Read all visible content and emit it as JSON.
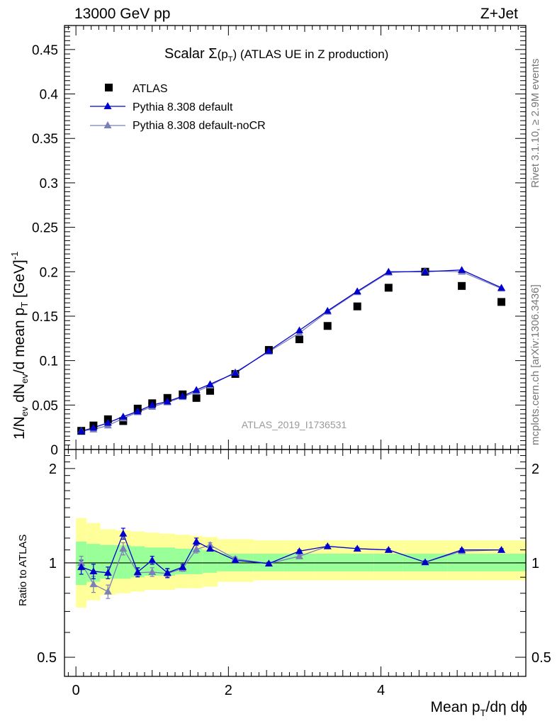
{
  "header": {
    "left": "13000 GeV pp",
    "right": "Z+Jet"
  },
  "plot_title": {
    "prefix": "Scalar ",
    "sigma": "Σ",
    "open": "(p",
    "sub": "T",
    "close": ")",
    "rest": " (ATLAS UE in Z production)"
  },
  "side_text": {
    "upper": "Rivet 3.1.10, ≥ 2.9M events",
    "lower": "mcplots.cern.ch [arXiv:1306.3436]"
  },
  "watermark": "ATLAS_2019_I1736531",
  "ylabel_main": {
    "p1": "1/N",
    "s1": "ev",
    "p2": " dN",
    "s2": "ev",
    "p3": "/d mean p",
    "s3": "T",
    "p4": " [GeV]",
    "sup": "-1"
  },
  "ylabel_ratio": "Ratio to ATLAS",
  "xlabel": {
    "p1": "Mean p",
    "s1": "T",
    "p2": "/dη dϕ"
  },
  "legend": [
    {
      "label": "ATLAS",
      "marker": "square",
      "color": "#000000"
    },
    {
      "label": "Pythia 8.308 default",
      "marker": "triangle",
      "color": "#0000cc"
    },
    {
      "label": "Pythia 8.308 default-noCR",
      "marker": "triangle",
      "color": "#7b7fba"
    }
  ],
  "chart_data": {
    "type": "scatter",
    "xlim": [
      -0.15,
      5.9
    ],
    "main": {
      "ylim": [
        0,
        0.477
      ],
      "yticks": [
        0,
        0.05,
        0.1,
        0.15,
        0.2,
        0.25,
        0.3,
        0.35,
        0.4,
        0.45
      ],
      "yticklabels": [
        "0",
        "0.05",
        "0.1",
        "0.15",
        "0.2",
        "0.25",
        "0.3",
        "0.35",
        "0.4",
        "0.45"
      ]
    },
    "ratio": {
      "ylim": [
        0.4345,
        2.3
      ],
      "log": true,
      "yticks": [
        0.5,
        1,
        2
      ],
      "yticklabels": [
        "0.5",
        "1",
        "2"
      ]
    },
    "xticks": [
      0,
      2,
      4
    ],
    "xticklabels": [
      "0",
      "2",
      "4"
    ],
    "x": [
      0.07,
      0.23,
      0.42,
      0.62,
      0.81,
      1.0,
      1.2,
      1.4,
      1.58,
      1.76,
      2.09,
      2.53,
      2.93,
      3.3,
      3.69,
      4.1,
      4.58,
      5.06,
      5.58
    ],
    "xerr": [
      0.07,
      0.09,
      0.1,
      0.1,
      0.09,
      0.1,
      0.1,
      0.1,
      0.08,
      0.1,
      0.24,
      0.2,
      0.2,
      0.17,
      0.22,
      0.19,
      0.29,
      0.19,
      0.33
    ],
    "atlas": [
      0.021,
      0.027,
      0.034,
      0.032,
      0.046,
      0.052,
      0.058,
      0.062,
      0.058,
      0.066,
      0.085,
      0.112,
      0.124,
      0.139,
      0.161,
      0.182,
      0.2,
      0.184,
      0.166
    ],
    "series": [
      {
        "name": "Pythia 8.308 default",
        "color": "#0000cc",
        "values": [
          0.0205,
          0.0245,
          0.03,
          0.037,
          0.043,
          0.05,
          0.054,
          0.06,
          0.067,
          0.0735,
          0.086,
          0.111,
          0.134,
          0.156,
          0.178,
          0.2,
          0.2,
          0.202,
          0.182
        ],
        "ratio": [
          0.97,
          0.94,
          0.93,
          1.24,
          0.935,
          1.02,
          0.93,
          0.97,
          1.17,
          1.11,
          1.02,
          0.995,
          1.09,
          1.13,
          1.11,
          1.1,
          1.005,
          1.1,
          1.1
        ]
      },
      {
        "name": "Pythia 8.308 default-noCR",
        "color": "#7b7fba",
        "values": [
          0.021,
          0.0225,
          0.027,
          0.035,
          0.042,
          0.048,
          0.053,
          0.059,
          0.065,
          0.072,
          0.087,
          0.11,
          0.131,
          0.155,
          0.177,
          0.199,
          0.201,
          0.2,
          0.181
        ],
        "ratio": [
          1.0,
          0.855,
          0.81,
          1.11,
          0.93,
          0.935,
          0.925,
          0.96,
          1.105,
          1.14,
          1.03,
          0.995,
          1.05,
          1.13,
          1.11,
          1.1,
          1.005,
          1.09,
          1.1
        ]
      }
    ],
    "ratio_err": {
      "default": [
        0.05,
        0.05,
        0.04,
        0.05,
        0.03,
        0.03,
        0.03,
        0.02,
        0.03,
        0.02,
        0.015,
        0.01,
        0.01,
        0.01,
        0.01,
        0.01,
        0.01,
        0.01,
        0.01
      ],
      "noCR": [
        0.05,
        0.05,
        0.04,
        0.05,
        0.03,
        0.03,
        0.03,
        0.02,
        0.03,
        0.02,
        0.015,
        0.01,
        0.01,
        0.01,
        0.01,
        0.01,
        0.01,
        0.01,
        0.01
      ]
    },
    "band_green": [
      [
        0.85,
        1.17
      ],
      [
        0.87,
        1.15
      ],
      [
        0.89,
        1.14
      ],
      [
        0.89,
        1.14
      ],
      [
        0.9,
        1.13
      ],
      [
        0.91,
        1.12
      ],
      [
        0.91,
        1.12
      ],
      [
        0.92,
        1.11
      ],
      [
        0.92,
        1.11
      ],
      [
        0.93,
        1.1
      ],
      [
        0.94,
        1.07
      ],
      [
        0.94,
        1.07
      ],
      [
        0.94,
        1.07
      ],
      [
        0.94,
        1.07
      ],
      [
        0.94,
        1.07
      ],
      [
        0.94,
        1.07
      ],
      [
        0.94,
        1.07
      ],
      [
        0.94,
        1.07
      ],
      [
        0.94,
        1.07
      ]
    ],
    "band_yellow": [
      [
        0.72,
        1.39
      ],
      [
        0.76,
        1.34
      ],
      [
        0.79,
        1.28
      ],
      [
        0.8,
        1.27
      ],
      [
        0.81,
        1.26
      ],
      [
        0.82,
        1.25
      ],
      [
        0.82,
        1.24
      ],
      [
        0.83,
        1.23
      ],
      [
        0.83,
        1.22
      ],
      [
        0.84,
        1.21
      ],
      [
        0.87,
        1.19
      ],
      [
        0.88,
        1.18
      ],
      [
        0.88,
        1.18
      ],
      [
        0.88,
        1.18
      ],
      [
        0.88,
        1.18
      ],
      [
        0.88,
        1.18
      ],
      [
        0.88,
        1.18
      ],
      [
        0.88,
        1.18
      ],
      [
        0.88,
        1.18
      ]
    ]
  }
}
